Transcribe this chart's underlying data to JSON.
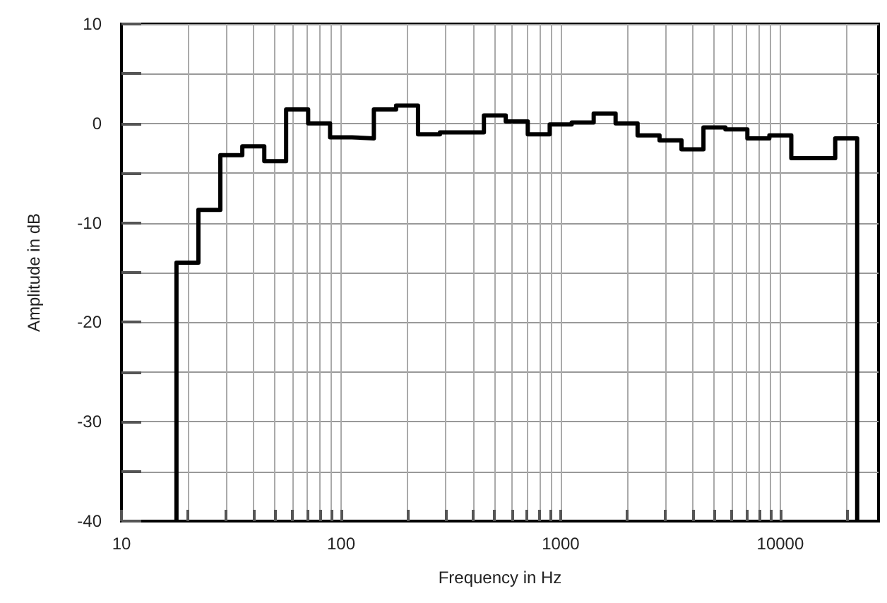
{
  "chart_data": {
    "type": "step",
    "xlabel": "Frequency in Hz",
    "ylabel": "Amplitude in dB",
    "log": "x",
    "grid": true,
    "marker": "none",
    "line_style": "solid",
    "xlim": [
      10,
      28000
    ],
    "xticks": [
      10,
      100,
      1000,
      10000
    ],
    "ylim": [
      -40,
      10
    ],
    "yticks": [
      -40,
      -30,
      -20,
      -10,
      0,
      10
    ],
    "series": [
      {
        "color": "#000000",
        "x": [
          17.8,
          17.8,
          22.4,
          28.2,
          35.5,
          44.7,
          56.2,
          70.8,
          89.1,
          112,
          141,
          178,
          224,
          282,
          355,
          447,
          562,
          708,
          891,
          1122,
          1413,
          1778,
          2239,
          2818,
          3548,
          4467,
          5623,
          7079,
          8913,
          11220,
          14125,
          17783,
          22387,
          22387
        ],
        "values": [
          -40,
          -14,
          -8.7,
          -3.2,
          -2.3,
          -3.8,
          1.4,
          0,
          -1.4,
          -1.5,
          1.4,
          1.8,
          -1.1,
          -0.9,
          -0.9,
          0.8,
          0.2,
          -1.1,
          -0.1,
          0.1,
          1.0,
          0,
          -1.2,
          -1.7,
          -2.6,
          -0.4,
          -0.6,
          -1.5,
          -1.2,
          -3.5,
          -3.5,
          -1.5,
          -1.5,
          -40
        ]
      }
    ]
  }
}
